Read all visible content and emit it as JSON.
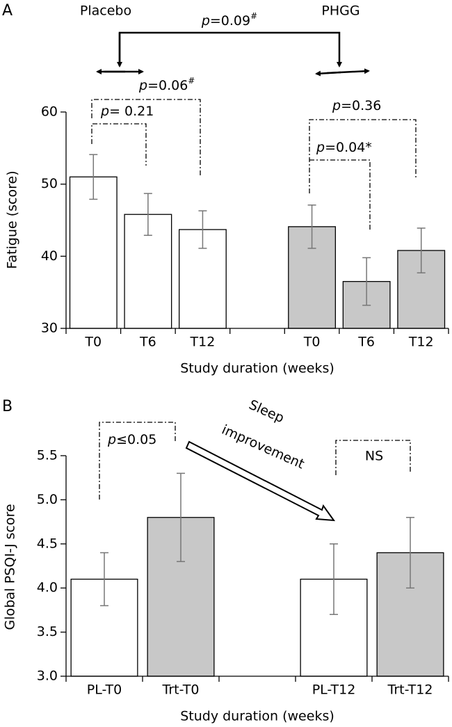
{
  "chart_data": [
    {
      "type": "bar",
      "panel_label": "A",
      "group_labels": [
        "Placebo",
        "PHGG"
      ],
      "ylabel": "Fatigue (score)",
      "xlabel": "Study duration (weeks)",
      "categories": [
        "T0",
        "T6",
        "T12",
        null,
        "T0",
        "T6",
        "T12"
      ],
      "values": [
        51.0,
        45.8,
        43.7,
        null,
        44.1,
        36.5,
        40.8
      ],
      "errors": [
        3.1,
        2.9,
        2.6,
        null,
        3.0,
        3.3,
        3.1
      ],
      "colors": [
        "#ffffff",
        "#ffffff",
        "#ffffff",
        null,
        "#c8c8c8",
        "#c8c8c8",
        "#c8c8c8"
      ],
      "ylim": [
        30,
        60
      ],
      "yticks": [
        30,
        40,
        50,
        60
      ],
      "annotations": [
        {
          "p": "p",
          "text": "=0.09",
          "sup": "#"
        },
        {
          "p": "p",
          "text": "=0.06",
          "sup": "#"
        },
        {
          "p": "p",
          "text": "= 0.21"
        },
        {
          "p": "p",
          "text": "=0.36"
        },
        {
          "p": "p",
          "text": "=0.04*"
        }
      ]
    },
    {
      "type": "bar",
      "panel_label": "B",
      "ylabel": "Global PSQI-J score",
      "xlabel": "Study duration (weeks)",
      "categories": [
        "PL-T0",
        "Trt-T0",
        null,
        "PL-T12",
        "Trt-T12"
      ],
      "values": [
        4.1,
        4.8,
        null,
        4.1,
        4.4
      ],
      "errors": [
        0.3,
        0.5,
        null,
        0.4,
        0.4
      ],
      "colors": [
        "#ffffff",
        "#c8c8c8",
        null,
        "#ffffff",
        "#c8c8c8"
      ],
      "ylim": [
        3.0,
        5.5
      ],
      "yticks": [
        {
          "value": 3,
          "label": "3.0"
        },
        3.5,
        {
          "value": 4,
          "label": "4.0"
        },
        4.5,
        {
          "value": 5,
          "label": "5.0"
        },
        5.5
      ],
      "annotations": [
        {
          "p": "p",
          "text": "≤0.05"
        },
        {
          "text": "NS"
        },
        {
          "text": "Sleep"
        },
        {
          "text": "improvement"
        }
      ]
    }
  ]
}
